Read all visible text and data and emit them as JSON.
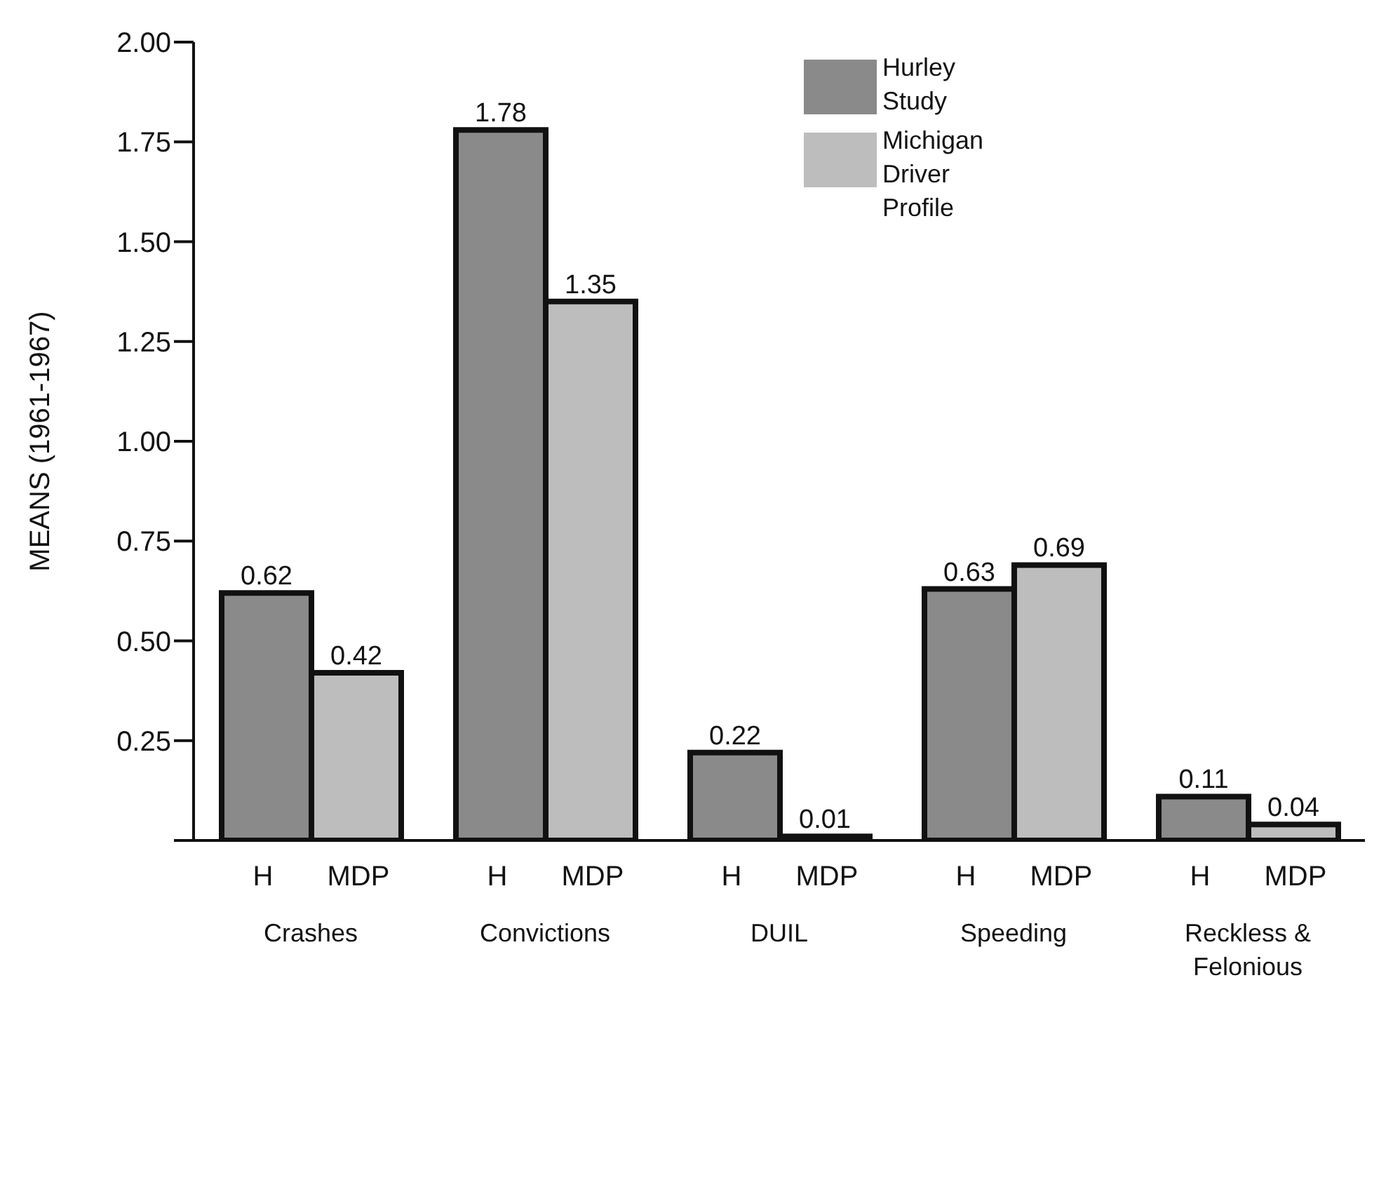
{
  "chart_data": {
    "type": "bar",
    "ylabel": "MEANS (1961-1967)",
    "categories": [
      "Crashes",
      "Convictions",
      "DUIL",
      "Speeding",
      "Reckless & Felonious"
    ],
    "series": [
      {
        "name": "Hurley Study",
        "color": "#8a8a8a",
        "values": [
          0.62,
          1.78,
          0.22,
          0.63,
          0.11
        ]
      },
      {
        "name": "Michigan Driver Profile",
        "color": "#bdbdbd",
        "values": [
          0.42,
          1.35,
          0.01,
          0.69,
          0.04
        ]
      }
    ],
    "ylim": [
      0,
      2
    ],
    "yticks": [
      {
        "value": 0,
        "label": null
      },
      0.25,
      {
        "value": 0.5,
        "label": "0.50"
      },
      0.75,
      {
        "value": 1,
        "label": "1.00"
      },
      1.25,
      {
        "value": 1.5,
        "label": "1.50"
      },
      1.75,
      {
        "value": 2,
        "label": "2.00"
      }
    ],
    "data_labels": true,
    "grid": false,
    "legend": "top right",
    "annotations": [
      "H",
      "MDP",
      "H",
      "MDP",
      "H",
      "MDP",
      "H",
      "MDP",
      "H",
      "MDP"
    ]
  }
}
